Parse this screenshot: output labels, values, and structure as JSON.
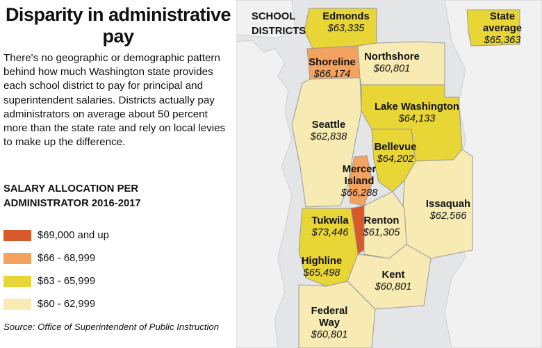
{
  "title": "Disparity in administrative pay",
  "intro": "There's no geographic or demographic pattern behind how much Washington state provides each school district to pay for principal and superintendent salaries. Districts actually pay administrators on average about 50 percent more than the state rate and rely on local levies to make up the difference.",
  "legend": {
    "title": "SALARY ALLOCATION PER ADMINISTRATOR 2016-2017",
    "items": [
      {
        "label": "$69,000 and up",
        "color": "#d85a2b"
      },
      {
        "label": "$66 - 68,999",
        "color": "#f3a35f"
      },
      {
        "label": "$63 - 65,999",
        "color": "#e8d536"
      },
      {
        "label": "$60 - 62,999",
        "color": "#f7eab3"
      }
    ]
  },
  "source": "Source: Office of Superintendent of Public Instruction",
  "map": {
    "header": "SCHOOL DISTRICTS",
    "districts": [
      {
        "name": "Edmonds",
        "amount": "$63,335",
        "tier": 2
      },
      {
        "name": "State average",
        "amount": "$65,363",
        "tier": 2
      },
      {
        "name": "Shoreline",
        "amount": "$66,174",
        "tier": 1
      },
      {
        "name": "Northshore",
        "amount": "$60,801",
        "tier": 3
      },
      {
        "name": "Lake Washington",
        "amount": "$64,133",
        "tier": 2
      },
      {
        "name": "Seattle",
        "amount": "$62,838",
        "tier": 3
      },
      {
        "name": "Bellevue",
        "amount": "$64,202",
        "tier": 2
      },
      {
        "name": "Mercer Island",
        "amount": "$66,288",
        "tier": 1
      },
      {
        "name": "Issaquah",
        "amount": "$62,566",
        "tier": 3
      },
      {
        "name": "Tukwila",
        "amount": "$73,446",
        "tier": 0
      },
      {
        "name": "Renton",
        "amount": "$61,305",
        "tier": 3
      },
      {
        "name": "Highline",
        "amount": "$65,498",
        "tier": 2
      },
      {
        "name": "Kent",
        "amount": "$60,801",
        "tier": 3
      },
      {
        "name": "Federal Way",
        "amount": "$60,801",
        "tier": 3
      }
    ]
  }
}
